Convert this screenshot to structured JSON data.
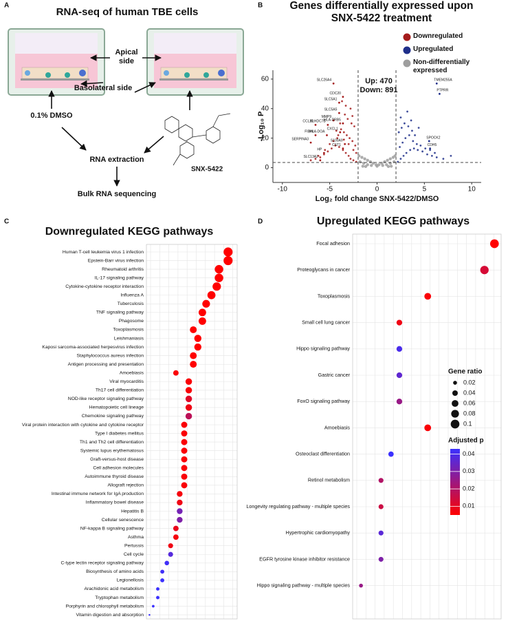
{
  "panel_labels": [
    "A",
    "B",
    "C",
    "D"
  ],
  "diagram": {
    "title": "RNA-seq of human TBE cells",
    "apical_label": "Apical side",
    "basolateral_label": "Basolateral side",
    "control_label": "0.1% DMSO",
    "drug_label": "SNX-5422",
    "step_1": "RNA extraction",
    "step_2": "Bulk RNA sequencing"
  },
  "chart_data": [
    {
      "type": "scatter",
      "title": "Genes differentially expressed upon SNX-5422 treatment",
      "x_label": "Log₂ fold change SNX-5422/DMSO",
      "y_label": "-Log₁₀ P",
      "xlim": [
        -11,
        11
      ],
      "ylim": [
        -10,
        66
      ],
      "xticks": [
        -10,
        -5,
        0,
        5,
        10
      ],
      "yticks": [
        0,
        20,
        40,
        60
      ],
      "thresholds": {
        "x": [
          -2,
          2
        ],
        "y": 3.5
      },
      "annotations": [
        {
          "text": "Up: 470",
          "color": "#3a5ba9"
        },
        {
          "text": "Down: 891",
          "color": "#c0242c"
        }
      ],
      "series": [
        {
          "name": "Downregulated",
          "color": "#a51c1c",
          "x": [
            -2.2,
            -2.5,
            -2.8,
            -3.0,
            -3.3,
            -3.6,
            -4.0,
            -4.4,
            -4.8,
            -5.2,
            -5.6,
            -6.0,
            -6.5,
            -7.0,
            -2.3,
            -2.6,
            -2.9,
            -3.2,
            -3.5,
            -3.8,
            -4.2,
            -4.6,
            -5.0,
            -5.5,
            -6.2,
            -2.4,
            -2.7,
            -3.1,
            -3.4,
            -3.9,
            -4.3,
            -2.2,
            -2.5,
            -3.0,
            -3.5,
            -4.1,
            -2.8,
            -3.3,
            -2.6,
            -3.7
          ],
          "values": [
            4,
            5,
            6,
            8,
            10,
            12,
            14,
            15,
            13,
            11,
            9,
            7,
            6,
            5,
            15,
            18,
            20,
            22,
            24,
            26,
            20,
            18,
            16,
            12,
            8,
            28,
            30,
            33,
            36,
            30,
            25,
            10,
            12,
            16,
            19,
            22,
            40,
            42,
            35,
            45
          ]
        },
        {
          "name": "Upregulated",
          "color": "#1f2f8a",
          "x": [
            2.2,
            2.5,
            2.8,
            3.1,
            3.5,
            3.9,
            4.3,
            4.8,
            5.3,
            5.8,
            6.3,
            7.0,
            7.8,
            2.4,
            2.7,
            3.0,
            3.4,
            3.8,
            4.2,
            4.6,
            5.1,
            5.6,
            6.1,
            2.3,
            2.6,
            2.9,
            3.3,
            3.7,
            4.0,
            2.5,
            3.2,
            3.6,
            4.4
          ],
          "values": [
            4,
            6,
            8,
            10,
            12,
            13,
            12,
            11,
            9,
            8,
            7,
            6,
            8,
            14,
            17,
            20,
            22,
            18,
            16,
            15,
            13,
            12,
            10,
            24,
            27,
            30,
            28,
            25,
            22,
            34,
            38,
            32,
            27
          ]
        },
        {
          "name": "Non-differentially expressed",
          "color": "#9e9e9e",
          "x": [
            -1.9,
            -1.6,
            -1.3,
            -1.0,
            -0.7,
            -0.4,
            -0.1,
            0.2,
            0.5,
            0.8,
            1.1,
            1.4,
            1.7,
            1.9,
            -1.8,
            -1.4,
            -1.0,
            -0.6,
            0,
            0.6,
            1.0,
            1.4,
            1.8,
            -1.5,
            1.5,
            -1.2,
            1.2
          ],
          "values": [
            8,
            7,
            6,
            5,
            4,
            3,
            2,
            2,
            3,
            4,
            5,
            6,
            7,
            8,
            4,
            3,
            2,
            1.5,
            1,
            1.5,
            2,
            3,
            4,
            1,
            1,
            0.8,
            0.8
          ]
        }
      ],
      "genes": {
        "names": [
          "SLC26A4",
          "CDC20",
          "SLC5A1",
          "SLC5A5",
          "MMP9",
          "CCL20",
          "KLHDC7B",
          "HLA-DRB5",
          "CXCL1",
          "FIBIN",
          "HLA-DOA",
          "S100A9",
          "SERPINA3",
          "CST1",
          "HP",
          "SLC13A2",
          "TMEM255A",
          "PTPRR",
          "SPOCK2",
          "CDH5"
        ],
        "x": [
          -4.6,
          -3.6,
          -4.0,
          -4.0,
          -4.6,
          -6.5,
          -5.2,
          -3.6,
          -3.9,
          -6.5,
          -5.3,
          -3.4,
          -7.0,
          -3.6,
          -5.6,
          -6.0,
          6.3,
          6.6,
          5.5,
          5.6
        ],
        "values": [
          57,
          48,
          44,
          37,
          32,
          29,
          29,
          30,
          24,
          22,
          22,
          16,
          17,
          13,
          10,
          5,
          57,
          50,
          18,
          13
        ]
      }
    },
    {
      "type": "dotplot",
      "title": "Downregulated KEGG pathways",
      "xlim": [
        0,
        0.12
      ],
      "categories": [
        "Human T-cell leukemia virus 1 infection",
        "Epstein-Barr virus infection",
        "Rheumatoid arthritis",
        "IL-17 signaling pathway",
        "Cytokine-cytokine receptor interaction",
        "Influenza A",
        "Tuberculosis",
        "TNF signaling pathway",
        "Phagosome",
        "Toxoplasmosis",
        "Leishmaniasis",
        "Kaposi sarcoma-associated herpesvirus infection",
        "Staphylococcus aureus infection",
        "Antigen processing and presentation",
        "Amoebiasis",
        "Viral myocarditis",
        "Th17 cell differentiation",
        "NOD-like receptor signaling pathway",
        "Hematopoietic cell lineage",
        "Chemokine signaling pathway",
        "Viral protein interaction with cytokine and cytokine receptor",
        "Type I diabetes mellitus",
        "Th1 and Th2 cell differentiation",
        "Systemic lupus erythematosus",
        "Graft-versus-host disease",
        "Cell adhesion molecules",
        "Autoimmune thyroid disease",
        "Allograft rejection",
        "Intestinal immune network for IgA production",
        "Inflammatory bowel disease",
        "Hepatitis B",
        "Cellular senescence",
        "NF-kappa B signaling pathway",
        "Asthma",
        "Pertussis",
        "Cell cycle",
        "C-type lectin receptor signaling pathway",
        "Biosynthesis of amino acids",
        "Legionellosis",
        "Arachidonic acid metabolism",
        "Tryptophan metabolism",
        "Porphyrin and chlorophyll metabolism",
        "Vitamin digestion and absorption"
      ],
      "gene_ratio": [
        0.108,
        0.108,
        0.096,
        0.096,
        0.093,
        0.086,
        0.079,
        0.074,
        0.074,
        0.062,
        0.068,
        0.068,
        0.062,
        0.062,
        0.039,
        0.056,
        0.056,
        0.056,
        0.056,
        0.056,
        0.05,
        0.05,
        0.05,
        0.05,
        0.05,
        0.05,
        0.05,
        0.05,
        0.044,
        0.044,
        0.044,
        0.044,
        0.039,
        0.039,
        0.032,
        0.032,
        0.027,
        0.021,
        0.021,
        0.015,
        0.015,
        0.009,
        0.004
      ],
      "adjusted_p": [
        0.005,
        0.005,
        0.005,
        0.005,
        0.005,
        0.005,
        0.005,
        0.005,
        0.005,
        0.005,
        0.005,
        0.005,
        0.005,
        0.005,
        0.006,
        0.006,
        0.006,
        0.011,
        0.008,
        0.018,
        0.006,
        0.006,
        0.006,
        0.006,
        0.006,
        0.006,
        0.006,
        0.006,
        0.007,
        0.008,
        0.032,
        0.03,
        0.009,
        0.007,
        0.008,
        0.038,
        0.042,
        0.042,
        0.043,
        0.043,
        0.043,
        0.043,
        0.043
      ]
    },
    {
      "type": "dotplot",
      "title": "Upregulated KEGG pathways",
      "xlim": [
        0.015,
        0.104
      ],
      "categories": [
        "Focal adhesion",
        "Proteoglycans in cancer",
        "Toxoplasmosis",
        "Small cell lung cancer",
        "Hippo signaling pathway",
        "Gastric cancer",
        "FoxO signaling pathway",
        "Amoebiasis",
        "Osteoclast differentiation",
        "Retinol metabolism",
        "Longevity regulating pathway - multiple species",
        "Hypertrophic cardiomyopathy",
        "EGFR tyrosine kinase inhibitor resistance",
        "Hippo signaling pathway - multiple species"
      ],
      "gene_ratio": [
        0.1,
        0.094,
        0.06,
        0.043,
        0.043,
        0.043,
        0.043,
        0.06,
        0.038,
        0.032,
        0.032,
        0.032,
        0.032,
        0.02
      ],
      "adjusted_p": [
        0.005,
        0.013,
        0.006,
        0.008,
        0.04,
        0.036,
        0.025,
        0.006,
        0.043,
        0.02,
        0.015,
        0.037,
        0.03,
        0.025
      ],
      "size_legend": {
        "title": "Gene ratio",
        "ticks": [
          0.02,
          0.04,
          0.06,
          0.08,
          0.1
        ]
      },
      "color_legend": {
        "title": "Adjusted p",
        "ticks": [
          0.01,
          0.02,
          0.03,
          0.04
        ],
        "clim": [
          0.005,
          0.043
        ],
        "colors": [
          "#ff0000",
          "#3b30ff"
        ]
      }
    }
  ]
}
